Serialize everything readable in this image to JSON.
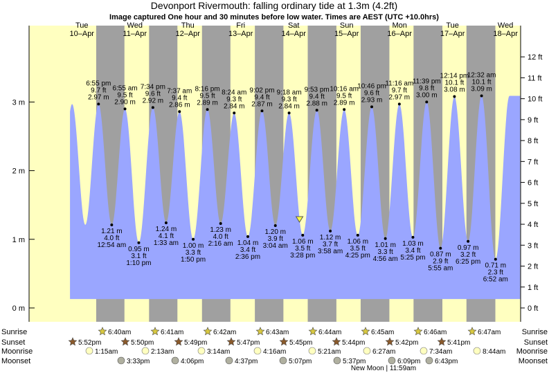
{
  "title": "Devonport Rivermouth: falling  ordinary tide at 1.3m (4.2ft)",
  "subtitle": "Image captured One hour and 30 minutes before low water. Times are AEST (UTC +10.0hrs)",
  "colors": {
    "day": "#ffffc0",
    "night": "#a0a0a0",
    "tide": "#9aa6ff",
    "day_label": "#e00000",
    "sun_star": "#d8c840",
    "sunset_star": "#8b5a2b",
    "moonrise": "#ffffc0",
    "moonset": "#b0b0a0"
  },
  "days": [
    {
      "dow": "Tue",
      "date": "10–Apr"
    },
    {
      "dow": "Wed",
      "date": "11–Apr"
    },
    {
      "dow": "Thu",
      "date": "12–Apr"
    },
    {
      "dow": "Fri",
      "date": "13–Apr"
    },
    {
      "dow": "Sat",
      "date": "14–Apr"
    },
    {
      "dow": "Sun",
      "date": "15–Apr"
    },
    {
      "dow": "Mon",
      "date": "16–Apr"
    },
    {
      "dow": "Tue",
      "date": "17–Apr"
    },
    {
      "dow": "Wed",
      "date": "18–Apr"
    }
  ],
  "rows": {
    "sunrise": {
      "label": "Sunrise",
      "times": [
        "6:40am",
        "6:41am",
        "6:42am",
        "6:43am",
        "6:44am",
        "6:45am",
        "6:46am",
        "6:47am"
      ]
    },
    "sunset": {
      "label": "Sunset",
      "times": [
        "5:52pm",
        "5:50pm",
        "5:49pm",
        "5:47pm",
        "5:45pm",
        "5:44pm",
        "5:42pm",
        "5:41pm"
      ]
    },
    "moonrise": {
      "label": "Moonrise",
      "times": [
        "1:15am",
        "2:13am",
        "3:14am",
        "4:16am",
        "5:21am",
        "6:27am",
        "7:34am",
        "8:44am"
      ]
    },
    "moonset": {
      "label": "Moonset",
      "times": [
        "3:33pm",
        "4:06pm",
        "4:37pm",
        "5:07pm",
        "5:37pm",
        "6:09pm",
        "6:43pm"
      ]
    },
    "new_moon": "New Moon | 11:59am"
  },
  "chart_data": {
    "type": "area",
    "title": "Devonport Rivermouth: falling  ordinary tide at 1.3m (4.2ft)",
    "subtitle": "Image captured One hour and 30 minutes before low water. Times are AEST (UTC +10.0hrs)",
    "x_unit": "hours since 10-Apr 00:00 AEST",
    "x_range": [
      6,
      210
    ],
    "y_left": {
      "unit": "m",
      "ticks": [
        0,
        1,
        2,
        3
      ],
      "tick_labels": [
        "0 m",
        "1 m",
        "2 m",
        "3 m"
      ],
      "range": [
        -0.15,
        4.03
      ]
    },
    "y_right": {
      "unit": "ft",
      "ticks": [
        0,
        1,
        2,
        3,
        4,
        5,
        6,
        7,
        8,
        9,
        10,
        11,
        12
      ],
      "tick_labels": [
        "0 ft",
        "1 ft",
        "2 ft",
        "3 ft",
        "4 ft",
        "5 ft",
        "6 ft",
        "7 ft",
        "8 ft",
        "9 ft",
        "10 ft",
        "11 ft",
        "12 ft"
      ]
    },
    "extremes": [
      {
        "t": "6:55 pm",
        "hour": 18.92,
        "m": 2.97,
        "ft": "9.7 ft",
        "type": "high"
      },
      {
        "t": "12:54 am",
        "hour": 24.9,
        "m": 1.21,
        "ft": "4.0 ft",
        "type": "low"
      },
      {
        "t": "6:55 am",
        "hour": 30.92,
        "m": 2.9,
        "ft": "9.5 ft",
        "type": "high"
      },
      {
        "t": "1:10 pm",
        "hour": 37.17,
        "m": 0.95,
        "ft": "3.1 ft",
        "type": "low"
      },
      {
        "t": "7:34 pm",
        "hour": 43.57,
        "m": 2.92,
        "ft": "9.6 ft",
        "type": "high"
      },
      {
        "t": "1:33 am",
        "hour": 49.55,
        "m": 1.24,
        "ft": "4.1 ft",
        "type": "low"
      },
      {
        "t": "7:37 am",
        "hour": 55.62,
        "m": 2.86,
        "ft": "9.4 ft",
        "type": "high"
      },
      {
        "t": "1:50 pm",
        "hour": 61.83,
        "m": 1.0,
        "ft": "3.3 ft",
        "type": "low"
      },
      {
        "t": "8:16 pm",
        "hour": 68.27,
        "m": 2.89,
        "ft": "9.5 ft",
        "type": "high"
      },
      {
        "t": "2:16 am",
        "hour": 74.27,
        "m": 1.23,
        "ft": "4.0 ft",
        "type": "low"
      },
      {
        "t": "8:24 am",
        "hour": 80.4,
        "m": 2.84,
        "ft": "9.3 ft",
        "type": "high"
      },
      {
        "t": "2:36 pm",
        "hour": 86.6,
        "m": 1.04,
        "ft": "3.4 ft",
        "type": "low"
      },
      {
        "t": "9:02 pm",
        "hour": 93.03,
        "m": 2.87,
        "ft": "9.4 ft",
        "type": "high"
      },
      {
        "t": "3:04 am",
        "hour": 99.07,
        "m": 1.2,
        "ft": "3.9 ft",
        "type": "low"
      },
      {
        "t": "9:18 am",
        "hour": 105.3,
        "m": 2.84,
        "ft": "9.3 ft",
        "type": "high"
      },
      {
        "t": "3:28 pm",
        "hour": 111.47,
        "m": 1.06,
        "ft": "3.5 ft",
        "type": "low"
      },
      {
        "t": "9:53 pm",
        "hour": 117.88,
        "m": 2.88,
        "ft": "9.4 ft",
        "type": "high"
      },
      {
        "t": "3:58 am",
        "hour": 123.97,
        "m": 1.12,
        "ft": "3.7 ft",
        "type": "low"
      },
      {
        "t": "10:16 am",
        "hour": 130.27,
        "m": 2.89,
        "ft": "9.5 ft",
        "type": "high"
      },
      {
        "t": "4:25 pm",
        "hour": 136.42,
        "m": 1.06,
        "ft": "3.5 ft",
        "type": "low"
      },
      {
        "t": "10:46 pm",
        "hour": 142.77,
        "m": 2.93,
        "ft": "9.6 ft",
        "type": "high"
      },
      {
        "t": "4:56 am",
        "hour": 148.93,
        "m": 1.01,
        "ft": "3.3 ft",
        "type": "low"
      },
      {
        "t": "11:16 am",
        "hour": 155.27,
        "m": 2.97,
        "ft": "9.7 ft",
        "type": "high"
      },
      {
        "t": "5:25 pm",
        "hour": 161.42,
        "m": 1.03,
        "ft": "3.4 ft",
        "type": "low"
      },
      {
        "t": "11:39 pm",
        "hour": 167.65,
        "m": 3.0,
        "ft": "9.8 ft",
        "type": "high"
      },
      {
        "t": "5:55 am",
        "hour": 173.92,
        "m": 0.87,
        "ft": "2.9 ft",
        "type": "low"
      },
      {
        "t": "12:14 pm",
        "hour": 180.23,
        "m": 3.08,
        "ft": "10.1 ft",
        "type": "high"
      },
      {
        "t": "6:25 pm",
        "hour": 186.42,
        "m": 0.97,
        "ft": "3.2 ft",
        "type": "low"
      },
      {
        "t": "12:32 am",
        "hour": 192.53,
        "m": 3.09,
        "ft": "10.1 ft",
        "type": "high"
      },
      {
        "t": "6:52 am",
        "hour": 198.87,
        "m": 0.71,
        "ft": "2.3 ft",
        "type": "low"
      }
    ],
    "current_marker_hour": 110.0,
    "night_bands_hours": [
      [
        17.87,
        30.67
      ],
      [
        41.83,
        54.68
      ],
      [
        65.82,
        78.7
      ],
      [
        89.78,
        102.72
      ],
      [
        113.75,
        126.73
      ],
      [
        137.73,
        150.75
      ],
      [
        161.7,
        174.77
      ],
      [
        185.68,
        198.78
      ]
    ]
  }
}
